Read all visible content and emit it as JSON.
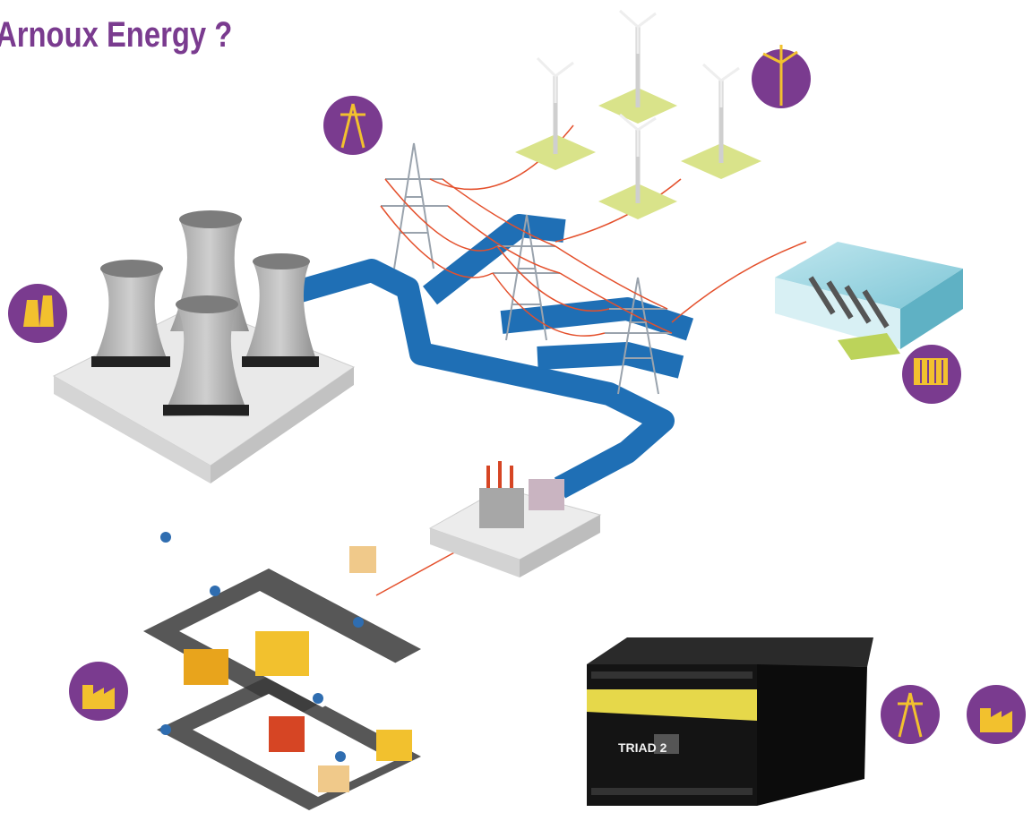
{
  "header": {
    "title": "Arnoux Energy ?"
  },
  "device": {
    "label": "TRIAD 2"
  }
}
